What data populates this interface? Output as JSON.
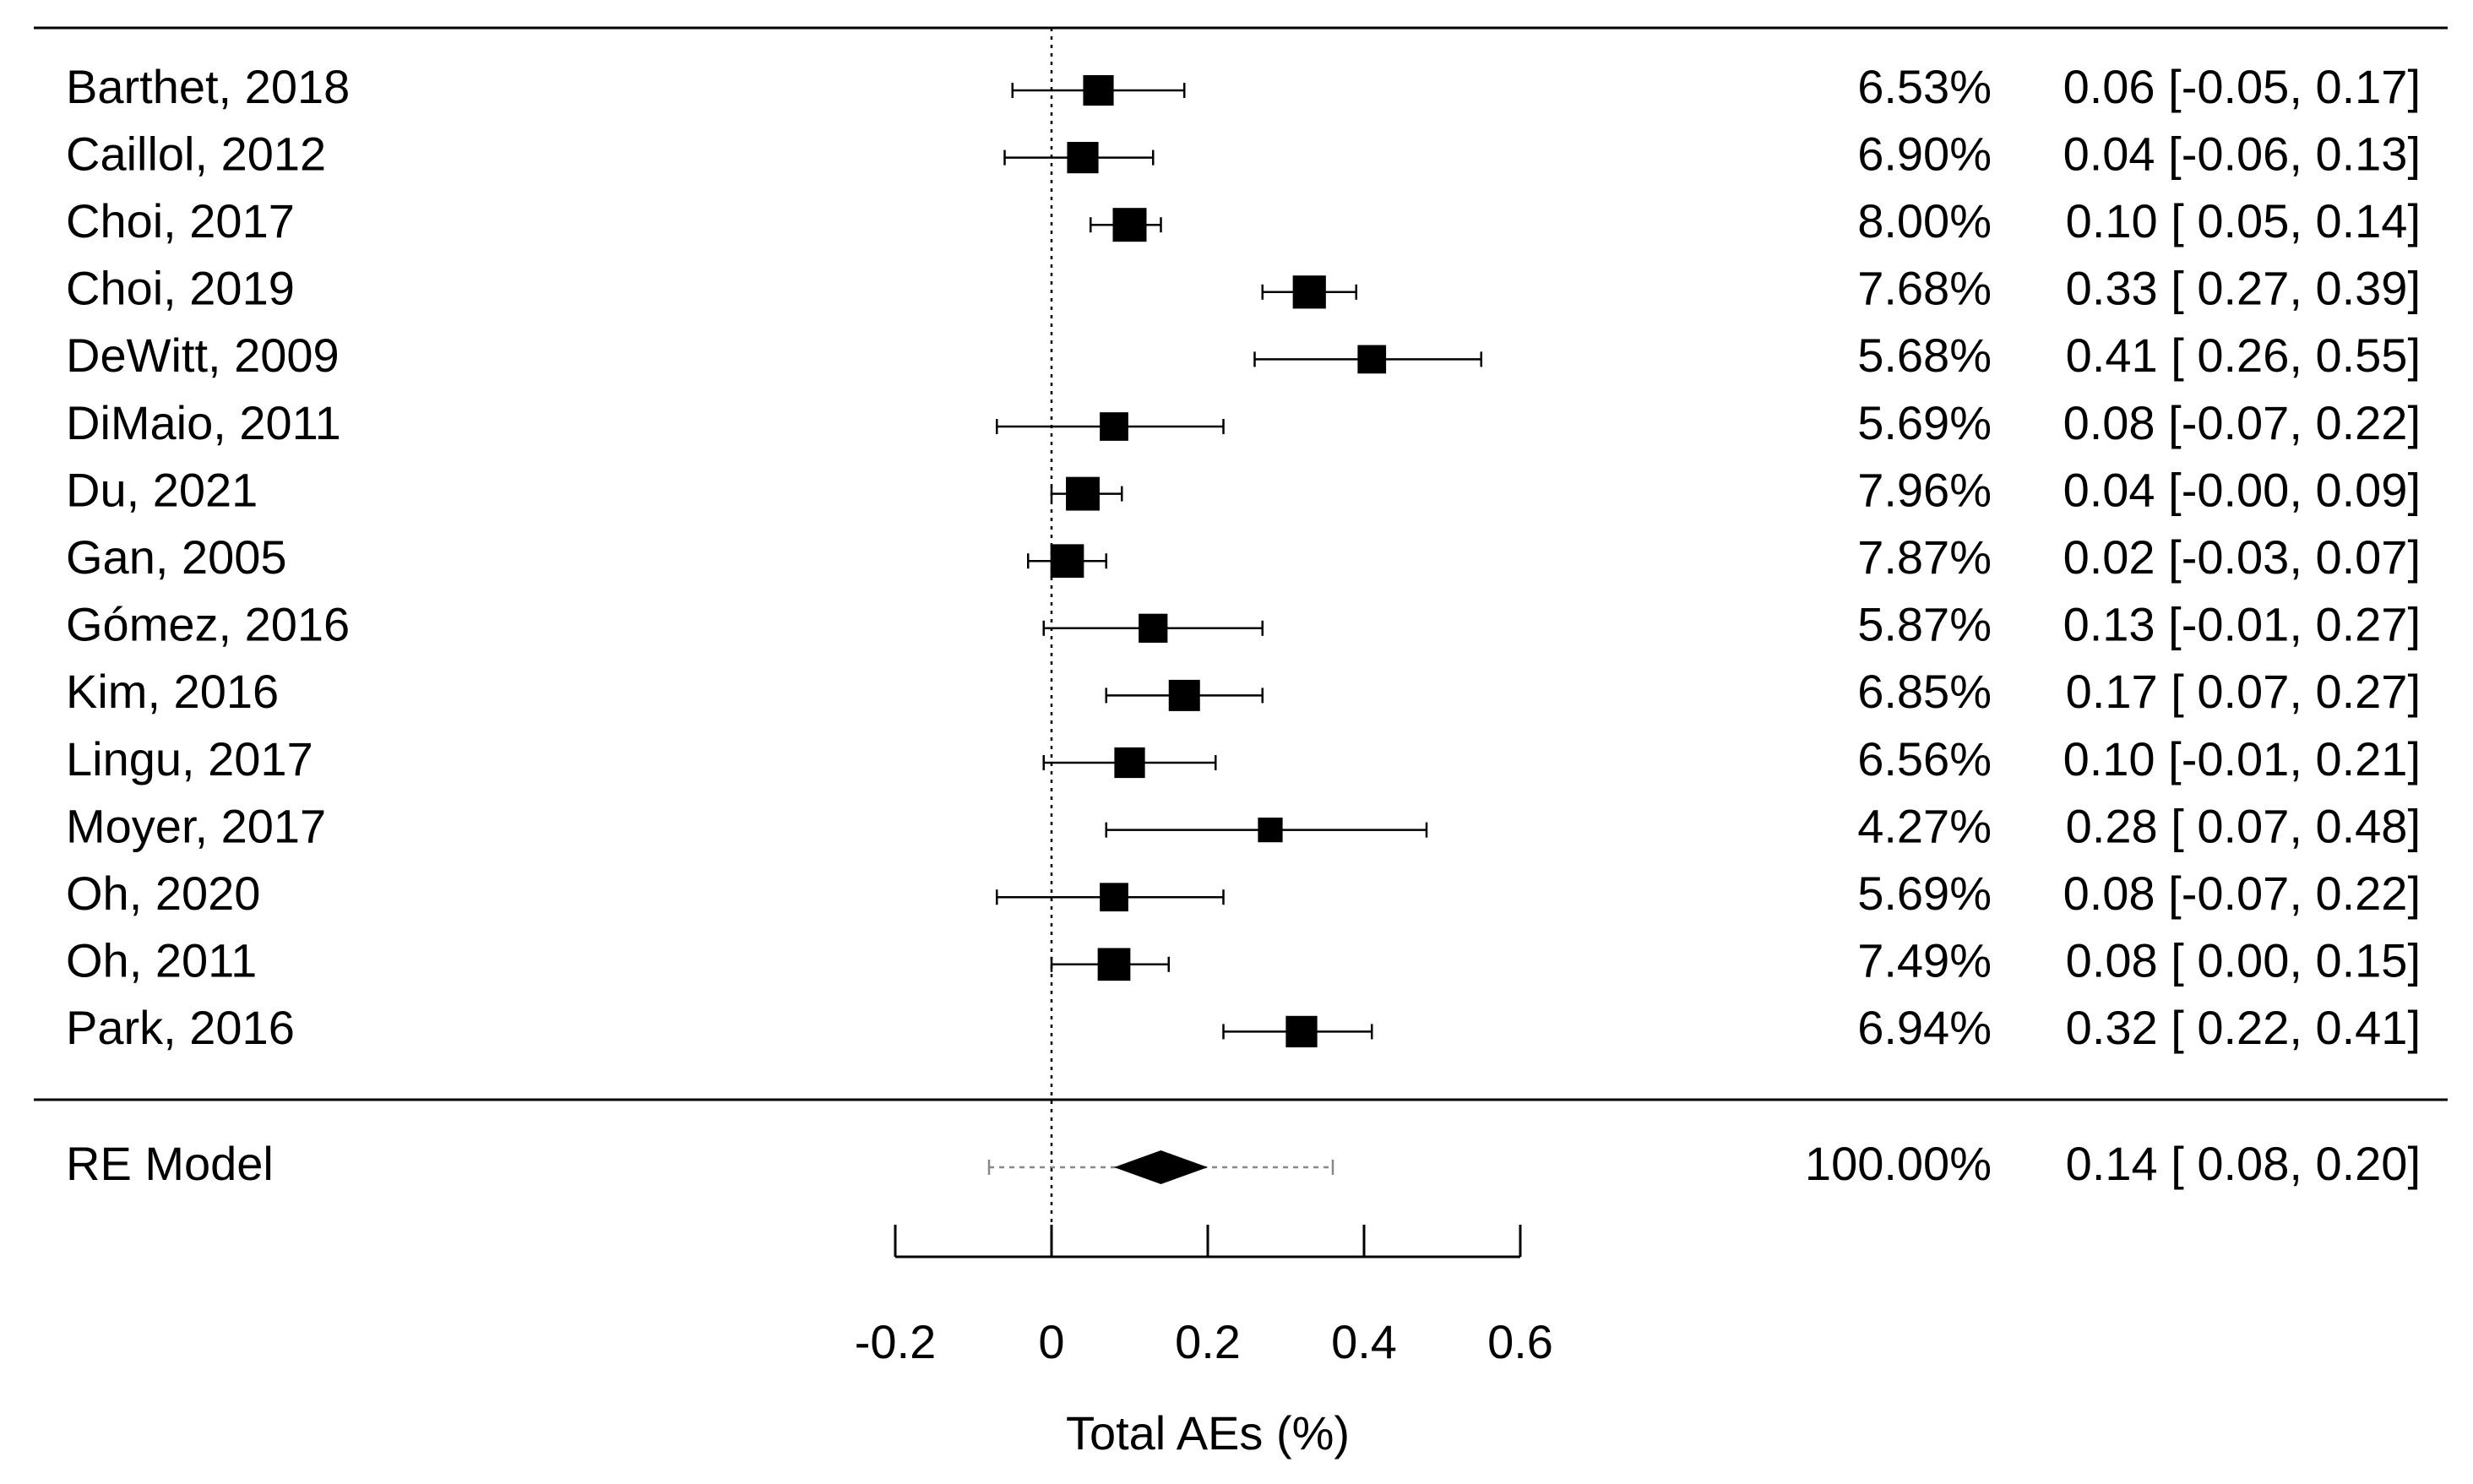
{
  "chart_data": {
    "type": "forest",
    "xlabel": "Total AEs (%)",
    "xlim": [
      -0.2,
      0.6
    ],
    "xticks": [
      -0.2,
      0,
      0.2,
      0.4,
      0.6
    ],
    "xtick_labels": [
      "-0.2",
      "0",
      "0.2",
      "0.4",
      "0.6"
    ],
    "reference_line": 0,
    "studies": [
      {
        "label": "Barthet, 2018",
        "estimate": 0.06,
        "lower": -0.05,
        "upper": 0.17,
        "weight": 6.53,
        "weight_text": "6.53%",
        "ci_text": "0.06 [-0.05, 0.17]"
      },
      {
        "label": "Caillol, 2012",
        "estimate": 0.04,
        "lower": -0.06,
        "upper": 0.13,
        "weight": 6.9,
        "weight_text": "6.90%",
        "ci_text": "0.04 [-0.06, 0.13]"
      },
      {
        "label": "Choi, 2017",
        "estimate": 0.1,
        "lower": 0.05,
        "upper": 0.14,
        "weight": 8.0,
        "weight_text": "8.00%",
        "ci_text": "0.10 [ 0.05, 0.14]"
      },
      {
        "label": "Choi, 2019",
        "estimate": 0.33,
        "lower": 0.27,
        "upper": 0.39,
        "weight": 7.68,
        "weight_text": "7.68%",
        "ci_text": "0.33 [ 0.27, 0.39]"
      },
      {
        "label": "DeWitt, 2009",
        "estimate": 0.41,
        "lower": 0.26,
        "upper": 0.55,
        "weight": 5.68,
        "weight_text": "5.68%",
        "ci_text": "0.41 [ 0.26, 0.55]"
      },
      {
        "label": "DiMaio, 2011",
        "estimate": 0.08,
        "lower": -0.07,
        "upper": 0.22,
        "weight": 5.69,
        "weight_text": "5.69%",
        "ci_text": "0.08 [-0.07, 0.22]"
      },
      {
        "label": "Du, 2021",
        "estimate": 0.04,
        "lower": -0.0,
        "upper": 0.09,
        "weight": 7.96,
        "weight_text": "7.96%",
        "ci_text": "0.04 [-0.00, 0.09]"
      },
      {
        "label": "Gan, 2005",
        "estimate": 0.02,
        "lower": -0.03,
        "upper": 0.07,
        "weight": 7.87,
        "weight_text": "7.87%",
        "ci_text": "0.02 [-0.03, 0.07]"
      },
      {
        "label": "Gómez, 2016",
        "estimate": 0.13,
        "lower": -0.01,
        "upper": 0.27,
        "weight": 5.87,
        "weight_text": "5.87%",
        "ci_text": "0.13 [-0.01, 0.27]"
      },
      {
        "label": "Kim, 2016",
        "estimate": 0.17,
        "lower": 0.07,
        "upper": 0.27,
        "weight": 6.85,
        "weight_text": "6.85%",
        "ci_text": "0.17 [ 0.07, 0.27]"
      },
      {
        "label": "Lingu, 2017",
        "estimate": 0.1,
        "lower": -0.01,
        "upper": 0.21,
        "weight": 6.56,
        "weight_text": "6.56%",
        "ci_text": "0.10 [-0.01, 0.21]"
      },
      {
        "label": "Moyer, 2017",
        "estimate": 0.28,
        "lower": 0.07,
        "upper": 0.48,
        "weight": 4.27,
        "weight_text": "4.27%",
        "ci_text": "0.28 [ 0.07, 0.48]"
      },
      {
        "label": "Oh, 2020",
        "estimate": 0.08,
        "lower": -0.07,
        "upper": 0.22,
        "weight": 5.69,
        "weight_text": "5.69%",
        "ci_text": "0.08 [-0.07, 0.22]"
      },
      {
        "label": "Oh, 2011",
        "estimate": 0.08,
        "lower": 0.0,
        "upper": 0.15,
        "weight": 7.49,
        "weight_text": "7.49%",
        "ci_text": "0.08 [ 0.00, 0.15]"
      },
      {
        "label": "Park, 2016",
        "estimate": 0.32,
        "lower": 0.22,
        "upper": 0.41,
        "weight": 6.94,
        "weight_text": "6.94%",
        "ci_text": "0.32 [ 0.22, 0.41]"
      }
    ],
    "summary": {
      "label": "RE Model",
      "estimate": 0.14,
      "lower": 0.08,
      "upper": 0.2,
      "pi_lower": -0.08,
      "pi_upper": 0.36,
      "weight": 100.0,
      "weight_text": "100.00%",
      "ci_text": "0.14 [ 0.08, 0.20]"
    }
  }
}
